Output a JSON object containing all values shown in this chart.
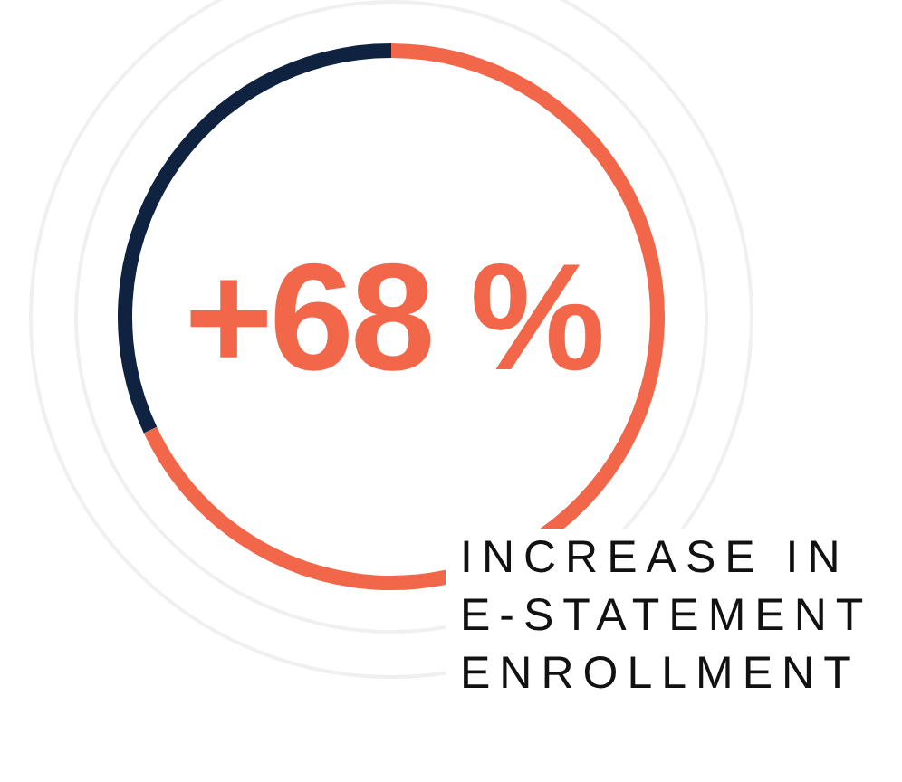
{
  "chart_data": {
    "type": "donut",
    "title": "INCREASE IN E-STATEMENT ENROLLMENT",
    "annotations": [
      "+68 %"
    ],
    "categories": [
      null,
      null
    ],
    "values": [
      68,
      32
    ],
    "colors": [
      "#f26649",
      "#0f2340"
    ],
    "legend": false
  }
}
